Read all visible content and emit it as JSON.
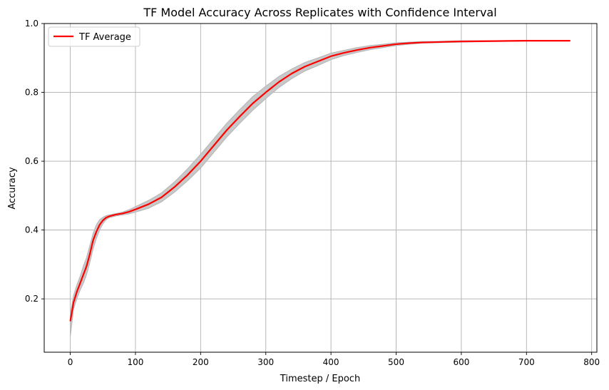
{
  "chart_data": {
    "type": "line",
    "title": "TF Model Accuracy Across Replicates with Confidence Interval",
    "xlabel": "Timestep / Epoch",
    "ylabel": "Accuracy",
    "xlim": [
      -40,
      808
    ],
    "ylim": [
      0.045,
      1.0
    ],
    "xticks": [
      0,
      100,
      200,
      300,
      400,
      500,
      600,
      700,
      800
    ],
    "xtick_labels": [
      "0",
      "100",
      "200",
      "300",
      "400",
      "500",
      "600",
      "700",
      "800"
    ],
    "yticks": [
      0.2,
      0.4,
      0.6,
      0.8,
      1.0
    ],
    "ytick_labels": [
      "0.2",
      "0.4",
      "0.6",
      "0.8",
      "1.0"
    ],
    "grid": true,
    "legend_position": "top-left",
    "series": [
      {
        "name": "TF Average",
        "color": "#ff0000",
        "x": [
          0,
          5,
          10,
          15,
          20,
          25,
          30,
          35,
          40,
          45,
          50,
          55,
          60,
          70,
          80,
          90,
          100,
          120,
          140,
          160,
          180,
          200,
          220,
          240,
          260,
          280,
          300,
          320,
          340,
          360,
          380,
          400,
          420,
          440,
          460,
          480,
          500,
          520,
          540,
          560,
          580,
          600,
          650,
          700,
          767
        ],
        "values": [
          0.135,
          0.19,
          0.22,
          0.245,
          0.27,
          0.295,
          0.33,
          0.37,
          0.395,
          0.415,
          0.428,
          0.436,
          0.44,
          0.445,
          0.448,
          0.453,
          0.46,
          0.475,
          0.495,
          0.525,
          0.56,
          0.6,
          0.645,
          0.69,
          0.73,
          0.768,
          0.8,
          0.83,
          0.855,
          0.875,
          0.89,
          0.905,
          0.915,
          0.923,
          0.93,
          0.935,
          0.94,
          0.943,
          0.945,
          0.946,
          0.947,
          0.948,
          0.949,
          0.95,
          0.95
        ]
      }
    ],
    "confidence_band": {
      "color": "#c8c8c8",
      "lower": [
        0.09,
        0.17,
        0.2,
        0.225,
        0.245,
        0.27,
        0.305,
        0.345,
        0.375,
        0.4,
        0.418,
        0.43,
        0.436,
        0.441,
        0.444,
        0.447,
        0.452,
        0.463,
        0.482,
        0.51,
        0.543,
        0.58,
        0.625,
        0.67,
        0.71,
        0.748,
        0.782,
        0.814,
        0.84,
        0.862,
        0.878,
        0.895,
        0.907,
        0.916,
        0.924,
        0.93,
        0.936,
        0.94,
        0.943,
        0.944,
        0.945,
        0.946,
        0.948,
        0.949,
        0.949
      ],
      "upper": [
        0.155,
        0.21,
        0.24,
        0.265,
        0.295,
        0.32,
        0.355,
        0.39,
        0.415,
        0.43,
        0.437,
        0.442,
        0.444,
        0.448,
        0.452,
        0.459,
        0.468,
        0.486,
        0.508,
        0.54,
        0.578,
        0.62,
        0.665,
        0.71,
        0.75,
        0.788,
        0.818,
        0.846,
        0.868,
        0.887,
        0.9,
        0.914,
        0.922,
        0.93,
        0.936,
        0.94,
        0.944,
        0.946,
        0.948,
        0.948,
        0.949,
        0.95,
        0.95,
        0.951,
        0.951
      ]
    }
  }
}
